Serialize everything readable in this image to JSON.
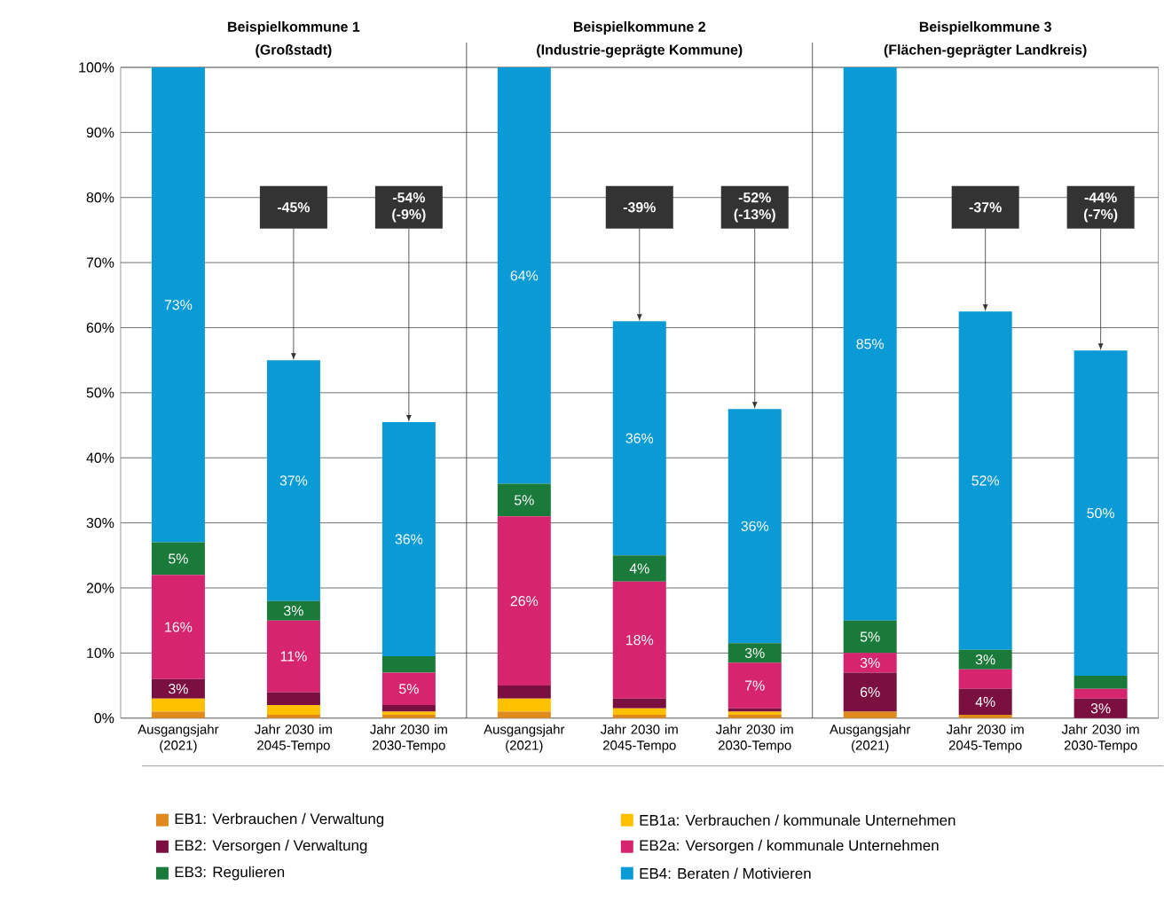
{
  "chart_data": {
    "type": "bar",
    "stacked": true,
    "categories": [
      "Ausgangsjahr (2021)",
      "Jahr 2030 im 2045-Tempo",
      "Jahr 2030 im 2030-Tempo",
      "Ausgangsjahr (2021)",
      "Jahr 2030 im 2045-Tempo",
      "Jahr 2030 im 2030-Tempo",
      "Ausgangsjahr (2021)",
      "Jahr 2030 im 2045-Tempo",
      "Jahr 2030 im 2030-Tempo"
    ],
    "series": [
      {
        "name": "EB1: Verbrauchen / Verwaltung",
        "color": "#e08a1e",
        "values": [
          1,
          0.5,
          0.5,
          1,
          0.5,
          0.5,
          1,
          0.5,
          0
        ]
      },
      {
        "name": "EB1a: Verbrauchen / kommunale Unternehmen",
        "color": "#ffc000",
        "values": [
          2,
          1.5,
          0.5,
          2,
          1,
          0.5,
          0,
          0,
          0
        ]
      },
      {
        "name": "EB2: Versorgen / Verwaltung",
        "color": "#7b1040",
        "values": [
          3,
          2,
          1,
          2,
          1.5,
          0.5,
          6,
          4,
          3
        ],
        "value_labels": [
          "3%",
          null,
          null,
          null,
          null,
          null,
          "6%",
          "4%",
          "3%"
        ]
      },
      {
        "name": "EB2a: Versorgen / kommunale Unternehmen",
        "color": "#d6246e",
        "values": [
          16,
          11,
          5,
          26,
          18,
          7,
          3,
          3,
          1.5
        ],
        "value_labels": [
          "16%",
          "11%",
          "5%",
          "26%",
          "18%",
          "7%",
          "3%",
          null,
          null
        ]
      },
      {
        "name": "EB3: Regulieren",
        "color": "#1a7a3a",
        "values": [
          5,
          3,
          2.5,
          5,
          4,
          3,
          5,
          3,
          2
        ],
        "value_labels": [
          "5%",
          "3%",
          null,
          "5%",
          "4%",
          "3%",
          "5%",
          "3%",
          null
        ]
      },
      {
        "name": "EB4: Beraten / Motivieren",
        "color": "#0a9ad6",
        "values": [
          73,
          37,
          36,
          64,
          36,
          36,
          85,
          52,
          50
        ],
        "value_labels": [
          "73%",
          "37%",
          "36%",
          "64%",
          "36%",
          "36%",
          "85%",
          "52%",
          "50%"
        ]
      }
    ],
    "ylim": [
      0,
      100
    ],
    "yticks": [
      {
        "value": 0,
        "label": "0%"
      },
      {
        "value": 10,
        "label": "10%"
      },
      {
        "value": 20,
        "label": "20%"
      },
      {
        "value": 30,
        "label": "30%"
      },
      {
        "value": 40,
        "label": "40%"
      },
      {
        "value": 50,
        "label": "50%"
      },
      {
        "value": 60,
        "label": "60%"
      },
      {
        "value": 70,
        "label": "70%"
      },
      {
        "value": 80,
        "label": "80%"
      },
      {
        "value": 90,
        "label": "90%"
      },
      {
        "value": 100,
        "label": "100%"
      }
    ],
    "grid": "y",
    "legend": "bottom",
    "annotations": [
      "Beispielkommune 1",
      "(Großstadt)",
      "Beispielkommune 2",
      "(Industrie-geprägte Kommune)",
      "Beispielkommune 3",
      "(Flächen-geprägter Landkreis)",
      {
        "text": "-45%",
        "y": 55
      },
      {
        "text": "-54% (-9%)",
        "y": 45.5
      },
      {
        "text": "-39%",
        "y": 61
      },
      {
        "text": "-52% (-13%)",
        "y": 47.5
      },
      {
        "text": "-37%",
        "y": 62.5
      },
      {
        "text": "-44% (-7%)",
        "y": 56.5
      }
    ]
  }
}
